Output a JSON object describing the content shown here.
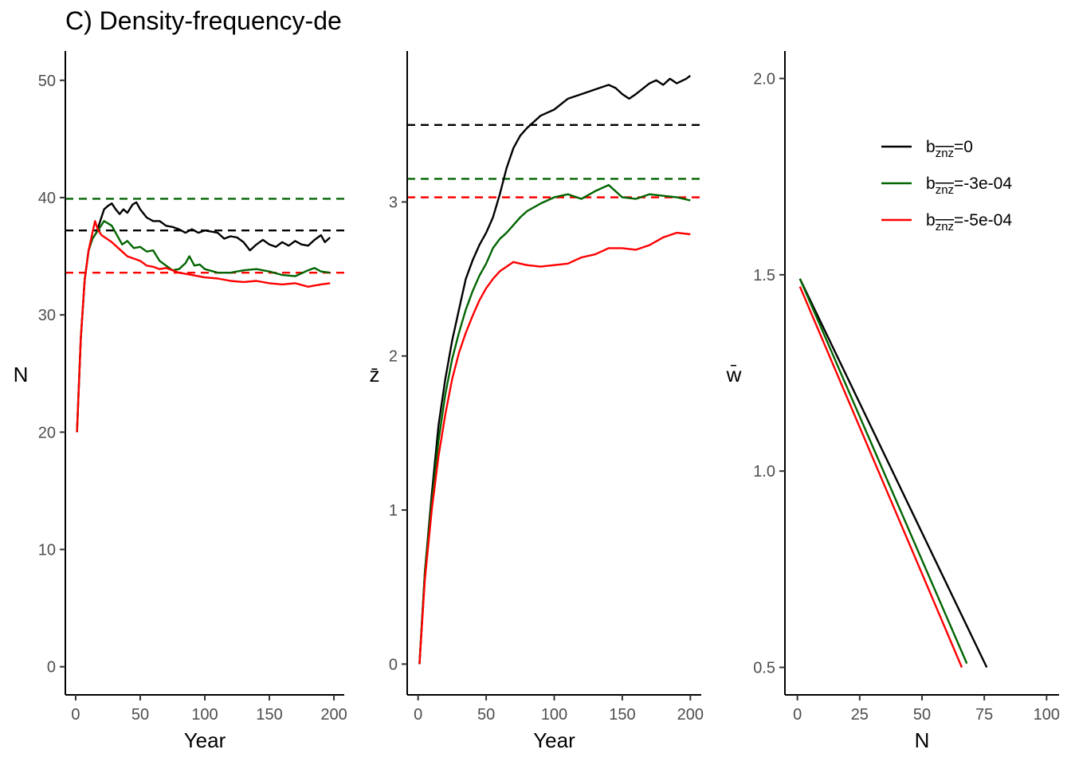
{
  "title": "C) Density-frequency-de",
  "colors": {
    "black": "#000000",
    "green": "#006400",
    "red": "#ff0000"
  },
  "legend": {
    "position": "top-right of panel 3",
    "entries": [
      {
        "prefix": "b",
        "sub": "znz",
        "suffix": "=0",
        "color": "#000000"
      },
      {
        "prefix": "b",
        "sub": "znz",
        "suffix": "=-3e-04",
        "color": "#006400"
      },
      {
        "prefix": "b",
        "sub": "znz",
        "suffix": "=-5e-04",
        "color": "#ff0000"
      }
    ]
  },
  "chart_data": [
    {
      "type": "line",
      "xlabel": "Year",
      "ylabel": "N",
      "xlim": [
        -8,
        208
      ],
      "ylim": [
        -2.4,
        52.5
      ],
      "xticks": [
        0,
        50,
        100,
        150,
        200
      ],
      "yticks": [
        0,
        10,
        20,
        30,
        40,
        50
      ],
      "grid": false,
      "series": [
        {
          "color": "#000000",
          "points": [
            [
              1,
              20
            ],
            [
              4,
              28
            ],
            [
              7,
              33
            ],
            [
              10,
              35.5
            ],
            [
              13,
              36.5
            ],
            [
              16,
              37
            ],
            [
              19,
              38
            ],
            [
              22,
              39
            ],
            [
              25,
              39.3
            ],
            [
              28,
              39.5
            ],
            [
              31,
              39
            ],
            [
              34,
              38.6
            ],
            [
              37,
              39
            ],
            [
              40,
              38.7
            ],
            [
              44,
              39.4
            ],
            [
              47,
              39.6
            ],
            [
              50,
              39
            ],
            [
              55,
              38.3
            ],
            [
              60,
              38
            ],
            [
              65,
              38
            ],
            [
              70,
              37.6
            ],
            [
              75,
              37.5
            ],
            [
              80,
              37.3
            ],
            [
              85,
              37
            ],
            [
              90,
              37.3
            ],
            [
              95,
              37
            ],
            [
              100,
              37.2
            ],
            [
              110,
              37
            ],
            [
              115,
              36.5
            ],
            [
              120,
              36.7
            ],
            [
              125,
              36.6
            ],
            [
              130,
              36.2
            ],
            [
              135,
              35.5
            ],
            [
              140,
              36
            ],
            [
              145,
              36.4
            ],
            [
              150,
              36
            ],
            [
              155,
              35.8
            ],
            [
              160,
              36.2
            ],
            [
              165,
              35.9
            ],
            [
              170,
              36.3
            ],
            [
              175,
              36
            ],
            [
              180,
              35.9
            ],
            [
              185,
              36.4
            ],
            [
              190,
              36.8
            ],
            [
              193,
              36.2
            ],
            [
              197,
              36.6
            ]
          ]
        },
        {
          "color": "#006400",
          "points": [
            [
              1,
              20
            ],
            [
              4,
              28
            ],
            [
              7,
              33
            ],
            [
              10,
              35.5
            ],
            [
              13,
              36.5
            ],
            [
              16,
              37
            ],
            [
              19,
              37.5
            ],
            [
              22,
              38
            ],
            [
              25,
              37.8
            ],
            [
              28,
              37.6
            ],
            [
              32,
              36.8
            ],
            [
              36,
              36
            ],
            [
              40,
              36.3
            ],
            [
              45,
              35.7
            ],
            [
              50,
              35.8
            ],
            [
              55,
              35.4
            ],
            [
              60,
              35.5
            ],
            [
              65,
              34.6
            ],
            [
              70,
              34.2
            ],
            [
              75,
              33.8
            ],
            [
              80,
              33.9
            ],
            [
              85,
              34.4
            ],
            [
              88,
              35
            ],
            [
              92,
              34.2
            ],
            [
              96,
              34.3
            ],
            [
              100,
              33.9
            ],
            [
              110,
              33.6
            ],
            [
              120,
              33.6
            ],
            [
              130,
              33.8
            ],
            [
              140,
              33.9
            ],
            [
              150,
              33.7
            ],
            [
              160,
              33.4
            ],
            [
              170,
              33.3
            ],
            [
              180,
              33.8
            ],
            [
              185,
              34
            ],
            [
              190,
              33.7
            ],
            [
              197,
              33.6
            ]
          ]
        },
        {
          "color": "#ff0000",
          "points": [
            [
              1,
              20
            ],
            [
              4,
              28
            ],
            [
              7,
              33
            ],
            [
              10,
              35.5
            ],
            [
              13,
              37
            ],
            [
              15,
              38
            ],
            [
              17,
              37.3
            ],
            [
              20,
              36.8
            ],
            [
              24,
              36.5
            ],
            [
              28,
              36.2
            ],
            [
              32,
              35.8
            ],
            [
              36,
              35.4
            ],
            [
              40,
              35
            ],
            [
              45,
              34.8
            ],
            [
              50,
              34.6
            ],
            [
              55,
              34.2
            ],
            [
              60,
              34.1
            ],
            [
              65,
              33.9
            ],
            [
              70,
              34
            ],
            [
              75,
              33.8
            ],
            [
              80,
              33.6
            ],
            [
              90,
              33.4
            ],
            [
              100,
              33.2
            ],
            [
              110,
              33.1
            ],
            [
              120,
              32.9
            ],
            [
              130,
              32.8
            ],
            [
              140,
              32.9
            ],
            [
              150,
              32.7
            ],
            [
              160,
              32.6
            ],
            [
              170,
              32.7
            ],
            [
              180,
              32.4
            ],
            [
              190,
              32.6
            ],
            [
              197,
              32.7
            ]
          ]
        }
      ],
      "hlines": [
        {
          "y": 39.9,
          "color": "#006400"
        },
        {
          "y": 37.2,
          "color": "#000000"
        },
        {
          "y": 33.6,
          "color": "#ff0000"
        }
      ]
    },
    {
      "type": "line",
      "xlabel": "Year",
      "ylabel": "z̄",
      "xlim": [
        -8,
        208
      ],
      "ylim": [
        -0.2,
        3.98
      ],
      "xticks": [
        0,
        50,
        100,
        150,
        200
      ],
      "yticks": [
        0,
        1,
        2,
        3
      ],
      "grid": false,
      "series": [
        {
          "color": "#000000",
          "points": [
            [
              1,
              0
            ],
            [
              5,
              0.6
            ],
            [
              10,
              1.1
            ],
            [
              15,
              1.55
            ],
            [
              20,
              1.85
            ],
            [
              25,
              2.1
            ],
            [
              30,
              2.3
            ],
            [
              35,
              2.5
            ],
            [
              40,
              2.62
            ],
            [
              45,
              2.72
            ],
            [
              50,
              2.8
            ],
            [
              55,
              2.9
            ],
            [
              60,
              3.05
            ],
            [
              65,
              3.22
            ],
            [
              70,
              3.35
            ],
            [
              75,
              3.43
            ],
            [
              80,
              3.48
            ],
            [
              85,
              3.52
            ],
            [
              90,
              3.56
            ],
            [
              95,
              3.58
            ],
            [
              100,
              3.6
            ],
            [
              110,
              3.67
            ],
            [
              120,
              3.7
            ],
            [
              130,
              3.73
            ],
            [
              140,
              3.76
            ],
            [
              145,
              3.74
            ],
            [
              150,
              3.7
            ],
            [
              155,
              3.67
            ],
            [
              160,
              3.7
            ],
            [
              170,
              3.77
            ],
            [
              175,
              3.79
            ],
            [
              180,
              3.76
            ],
            [
              185,
              3.8
            ],
            [
              190,
              3.77
            ],
            [
              197,
              3.8
            ],
            [
              200,
              3.82
            ]
          ]
        },
        {
          "color": "#006400",
          "points": [
            [
              1,
              0
            ],
            [
              5,
              0.6
            ],
            [
              10,
              1.05
            ],
            [
              15,
              1.45
            ],
            [
              20,
              1.75
            ],
            [
              25,
              1.98
            ],
            [
              30,
              2.15
            ],
            [
              35,
              2.3
            ],
            [
              40,
              2.42
            ],
            [
              45,
              2.52
            ],
            [
              50,
              2.6
            ],
            [
              55,
              2.7
            ],
            [
              60,
              2.76
            ],
            [
              65,
              2.8
            ],
            [
              70,
              2.85
            ],
            [
              75,
              2.9
            ],
            [
              80,
              2.94
            ],
            [
              90,
              2.99
            ],
            [
              100,
              3.03
            ],
            [
              110,
              3.05
            ],
            [
              120,
              3.02
            ],
            [
              130,
              3.07
            ],
            [
              140,
              3.11
            ],
            [
              145,
              3.07
            ],
            [
              150,
              3.03
            ],
            [
              160,
              3.02
            ],
            [
              170,
              3.05
            ],
            [
              180,
              3.04
            ],
            [
              190,
              3.03
            ],
            [
              200,
              3.01
            ]
          ]
        },
        {
          "color": "#ff0000",
          "points": [
            [
              1,
              0
            ],
            [
              5,
              0.55
            ],
            [
              10,
              1.0
            ],
            [
              15,
              1.35
            ],
            [
              20,
              1.62
            ],
            [
              25,
              1.85
            ],
            [
              30,
              2.02
            ],
            [
              35,
              2.15
            ],
            [
              40,
              2.26
            ],
            [
              45,
              2.36
            ],
            [
              50,
              2.44
            ],
            [
              55,
              2.5
            ],
            [
              60,
              2.55
            ],
            [
              65,
              2.58
            ],
            [
              70,
              2.61
            ],
            [
              75,
              2.6
            ],
            [
              80,
              2.59
            ],
            [
              90,
              2.58
            ],
            [
              100,
              2.59
            ],
            [
              110,
              2.6
            ],
            [
              120,
              2.64
            ],
            [
              130,
              2.66
            ],
            [
              140,
              2.7
            ],
            [
              150,
              2.7
            ],
            [
              160,
              2.69
            ],
            [
              170,
              2.72
            ],
            [
              180,
              2.77
            ],
            [
              190,
              2.8
            ],
            [
              200,
              2.79
            ]
          ]
        }
      ],
      "hlines": [
        {
          "y": 3.5,
          "color": "#000000"
        },
        {
          "y": 3.15,
          "color": "#006400"
        },
        {
          "y": 3.03,
          "color": "#ff0000"
        }
      ]
    },
    {
      "type": "line",
      "xlabel": "N",
      "ylabel": "w̄",
      "xlim": [
        -5,
        105
      ],
      "ylim": [
        0.43,
        2.07
      ],
      "xticks": [
        0,
        25,
        50,
        75,
        100
      ],
      "yticks": [
        0.5,
        1.0,
        1.5,
        2.0
      ],
      "ytick_labels": [
        "0.5",
        "1.0",
        "1.5",
        "2.0"
      ],
      "grid": false,
      "series": [
        {
          "color": "#000000",
          "points": [
            [
              1,
              1.49
            ],
            [
              76,
              0.5
            ]
          ]
        },
        {
          "color": "#006400",
          "points": [
            [
              1,
              1.49
            ],
            [
              68,
              0.51
            ]
          ]
        },
        {
          "color": "#ff0000",
          "points": [
            [
              1,
              1.47
            ],
            [
              66,
              0.5
            ]
          ]
        }
      ],
      "hlines": []
    }
  ]
}
